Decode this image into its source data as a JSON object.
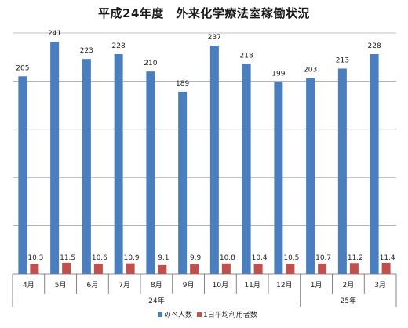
{
  "title": "平成24年度　外来化学療法室稼働状況",
  "chart_data": {
    "type": "bar",
    "title": "平成24年度　外来化学療法室稼働状況",
    "categories": [
      "4月",
      "5月",
      "6月",
      "7月",
      "8月",
      "9月",
      "10月",
      "11月",
      "12月",
      "1月",
      "2月",
      "3月"
    ],
    "category_groups": [
      {
        "label": "24年",
        "span": 9
      },
      {
        "label": "25年",
        "span": 3
      }
    ],
    "series": [
      {
        "name": "のべ人数",
        "color": "#4a7ebf",
        "values": [
          205,
          241,
          223,
          228,
          210,
          189,
          237,
          218,
          199,
          203,
          213,
          228
        ]
      },
      {
        "name": "1日平均利用者数",
        "color": "#c0504d",
        "values": [
          10.3,
          11.5,
          10.6,
          10.9,
          9.1,
          9.9,
          10.8,
          10.4,
          10.5,
          10.7,
          11.2,
          11.4
        ]
      }
    ],
    "data_labels": [
      "205",
      "241",
      "223",
      "228",
      "210",
      "189",
      "237",
      "218",
      "199",
      "203",
      "213",
      "228"
    ],
    "data_labels_2": [
      "10.3",
      "11.5",
      "10.6",
      "10.9",
      "9.1",
      "9.9",
      "10.8",
      "10.4",
      "10.5",
      "10.7",
      "11.2",
      "11.4"
    ],
    "ylim": [
      0,
      250
    ],
    "grid": true,
    "legend_position": "bottom"
  }
}
